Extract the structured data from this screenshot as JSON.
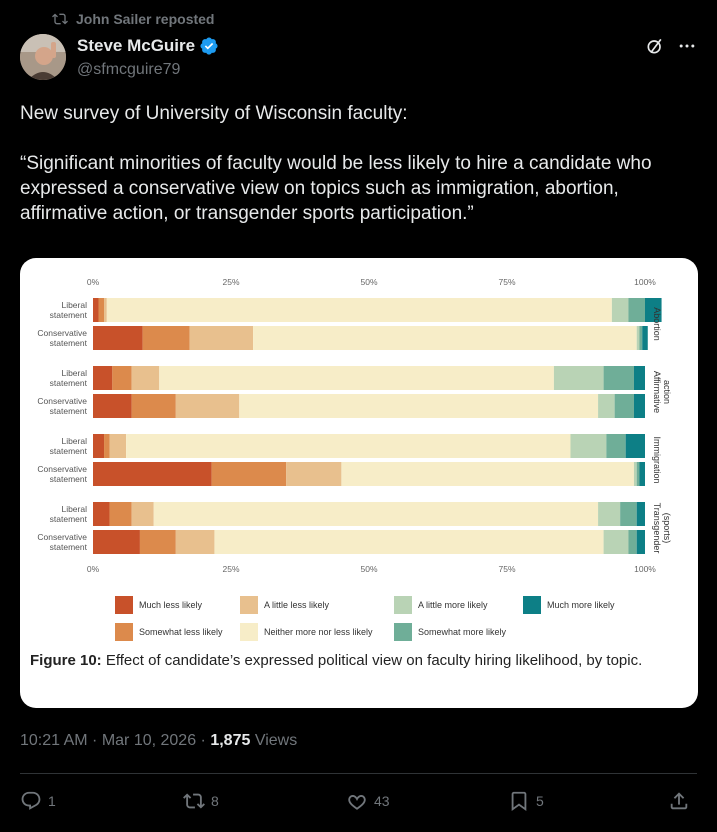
{
  "repost": {
    "label": "John Sailer reposted"
  },
  "author": {
    "name": "Steve McGuire",
    "handle": "@sfmcguire79"
  },
  "post": {
    "line1": "New survey of University of Wisconsin faculty:",
    "line2": "“Significant minorities of faculty would be less likely to hire a candidate who expressed a conservative view on topics such as immigration, abortion, affirmative action, or transgender sports participation.”"
  },
  "figure": {
    "caption_bold": "Figure 10:",
    "caption_text": " Effect of candidate’s expressed political view on faculty hiring likelihood, by topic."
  },
  "meta": {
    "time": "10:21 AM · Mar 10, 2026 · ",
    "views_count": "1,875",
    "views_label": " Views"
  },
  "actions": {
    "replies": "1",
    "reposts": "8",
    "likes": "43",
    "bookmarks": "5"
  },
  "colors": {
    "accent": "#1d9bf0",
    "much_less": "#c8512a",
    "somewhat_less": "#dc8a4c",
    "little_less": "#e8c08e",
    "neither": "#f7edc8",
    "little_more": "#b9d3b5",
    "somewhat_more": "#6fae98",
    "much_more": "#0d7f86"
  },
  "chart_data": {
    "type": "bar",
    "orientation": "horizontal-stacked",
    "xlim": [
      0,
      100
    ],
    "x_ticks": [
      "0%",
      "25%",
      "50%",
      "75%",
      "100%"
    ],
    "legend": [
      "Much less likely",
      "Somewhat less likely",
      "A little less likely",
      "Neither more nor less likely",
      "A little more likely",
      "Somewhat more likely",
      "Much more likely"
    ],
    "legend_order_display": [
      [
        "Much less likely",
        "A little less likely",
        "A little more likely",
        "Much more likely"
      ],
      [
        "Somewhat less likely",
        "Neither more nor less likely",
        "Somewhat more likely"
      ]
    ],
    "groups": [
      {
        "topic": [
          "Abortion"
        ],
        "rows": [
          {
            "label": [
              "Liberal",
              "statement"
            ],
            "values": [
              1,
              1,
              0.5,
              91.5,
              3,
              3,
              3
            ]
          },
          {
            "label": [
              "Conservative",
              "statement"
            ],
            "values": [
              9,
              8.5,
              11.5,
              69.5,
              0.5,
              0.5,
              1
            ]
          }
        ]
      },
      {
        "topic": [
          "Affirmative",
          "action"
        ],
        "rows": [
          {
            "label": [
              "Liberal",
              "statement"
            ],
            "values": [
              3.5,
              3.5,
              5,
              71.5,
              9,
              5.5,
              2
            ]
          },
          {
            "label": [
              "Conservative",
              "statement"
            ],
            "values": [
              7,
              8,
              11.5,
              65,
              3,
              3.5,
              2
            ]
          }
        ]
      },
      {
        "topic": [
          "Immigration"
        ],
        "rows": [
          {
            "label": [
              "Liberal",
              "statement"
            ],
            "values": [
              2,
              1,
              3,
              80.5,
              6.5,
              3.5,
              3.5
            ]
          },
          {
            "label": [
              "Conservative",
              "statement"
            ],
            "values": [
              21.5,
              13.5,
              10,
              53,
              0.5,
              0.5,
              1
            ]
          }
        ]
      },
      {
        "topic": [
          "Transgender",
          "(sports)"
        ],
        "rows": [
          {
            "label": [
              "Liberal",
              "statement"
            ],
            "values": [
              3,
              4,
              4,
              80.5,
              4,
              3,
              1.5
            ]
          },
          {
            "label": [
              "Conservative",
              "statement"
            ],
            "values": [
              8.5,
              6.5,
              7,
              70.5,
              4.5,
              1.5,
              1.5
            ]
          }
        ]
      }
    ]
  }
}
